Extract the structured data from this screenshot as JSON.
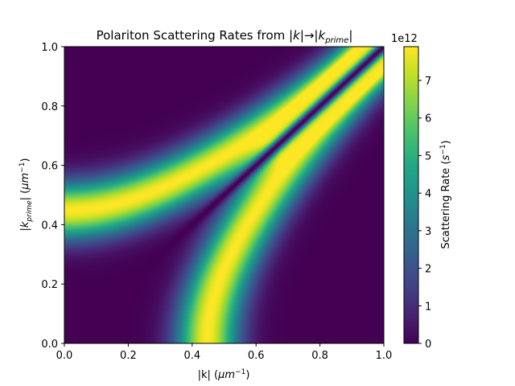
{
  "chart_data": {
    "type": "heatmap",
    "title": "Polariton Scattering Rates from |k|→|k_prime|",
    "title_parts": {
      "prefix": "Polariton Scattering Rates from |",
      "k": "k",
      "arrow": "|→|",
      "k2": "k",
      "sub": "prime",
      "suffix": "|"
    },
    "xlabel": "|k| (μm⁻¹)",
    "xlabel_parts": {
      "text": "|k| (",
      "unit": "μm",
      "exp": "−1",
      "close": ")"
    },
    "ylabel": "|k_prime| (μm⁻¹)",
    "ylabel_parts": {
      "open": "|",
      "k": "k",
      "sub": "prime",
      "mid": "| (",
      "unit": "μm",
      "exp": "−1",
      "close": ")"
    },
    "xlim": [
      0.0,
      1.0
    ],
    "ylim": [
      0.0,
      1.0
    ],
    "x_ticks": [
      "0.0",
      "0.2",
      "0.4",
      "0.6",
      "0.8",
      "1.0"
    ],
    "y_ticks": [
      "0.0",
      "0.2",
      "0.4",
      "0.6",
      "0.8",
      "1.0"
    ],
    "colormap": "viridis",
    "colorbar": {
      "label": "Scattering Rate (s⁻¹)",
      "label_parts": {
        "text": "Scattering Rate (",
        "unit": "s",
        "exp": "−1",
        "close": ")"
      },
      "offset_text": "1e12",
      "range": [
        0,
        7.9
      ],
      "ticks": [
        "0",
        "1",
        "2",
        "3",
        "4",
        "5",
        "6",
        "7"
      ]
    },
    "description_of_field": {
      "diagonal_minimum": "rate ≈ 0 along |k| = |k_prime|",
      "upper_ridge_peaks": [
        [
          0.0,
          0.45,
          7.9
        ],
        [
          0.2,
          0.5,
          7.9
        ],
        [
          0.4,
          0.62,
          7.9
        ],
        [
          0.6,
          0.76,
          7.9
        ],
        [
          0.8,
          0.92,
          7.9
        ],
        [
          0.9,
          0.97,
          7.9
        ]
      ],
      "lower_ridge_peaks": [
        [
          0.45,
          0.0,
          7.9
        ],
        [
          0.5,
          0.2,
          7.9
        ],
        [
          0.62,
          0.4,
          7.9
        ],
        [
          0.76,
          0.6,
          7.9
        ],
        [
          0.92,
          0.8,
          7.9
        ],
        [
          0.97,
          0.9,
          7.9
        ]
      ]
    }
  }
}
